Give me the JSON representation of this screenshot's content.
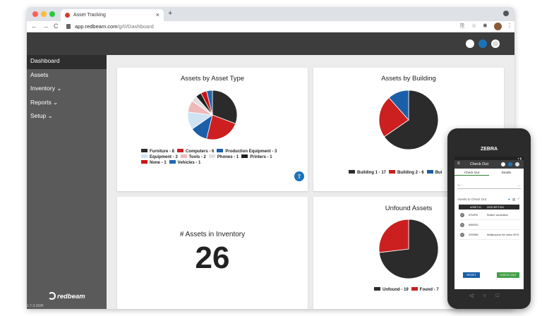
{
  "browser": {
    "tab_title": "Asset Tracking",
    "tab_close": "×",
    "new_tab": "+",
    "url_host": "app.redbeam.com",
    "url_path": "/g/0/Dashboard",
    "back": "←",
    "forward": "→",
    "reload": "C",
    "traffic_colors": [
      "#ff5f57",
      "#febc2e",
      "#28c840"
    ]
  },
  "sidebar": {
    "items": [
      {
        "label": "Dashboard"
      },
      {
        "label": "Assets"
      },
      {
        "label": "Inventory ⌄"
      },
      {
        "label": "Reports ⌄"
      },
      {
        "label": "Setup ⌄"
      }
    ],
    "logo_text": "redbeam",
    "version": "1.7.3.169F"
  },
  "colors": {
    "accent": "#1a73b8",
    "header": "#3d3d3d",
    "sidebar": "#5a5a5a",
    "chart_dark": "#2b2b2b",
    "chart_red": "#cc1f1f",
    "chart_blue": "#1a5fa8"
  },
  "cards": {
    "asset_type_title": "Assets by Asset Type",
    "building_title": "Assets by Building",
    "inventory_label": "# Assets in Inventory",
    "inventory_count": "26",
    "unfound_title": "Unfound Assets"
  },
  "chart_data": [
    {
      "type": "pie",
      "title": "Assets by Asset Type",
      "categories": [
        "Furniture",
        "Computers",
        "Production Equipment",
        "Equipment",
        "Tools",
        "Phones",
        "Printers",
        "None",
        "Vehicles"
      ],
      "values": [
        8,
        6,
        3,
        3,
        2,
        1,
        1,
        1,
        1
      ],
      "colors": [
        "#2b2b2b",
        "#cc1f1f",
        "#1a5fa8",
        "#cfe3f5",
        "#f0b8b8",
        "#e0e0e0",
        "#202020",
        "#c81414",
        "#1e66b0"
      ],
      "legend_labels": [
        "Furniture - 8",
        "Computers - 6",
        "Production Equipment - 3",
        "Equipment - 3",
        "Tools - 2",
        "Phones - 1",
        "Printers - 1",
        "None - 1",
        "Vehicles - 1"
      ],
      "legend_position": "bottom"
    },
    {
      "type": "pie",
      "title": "Assets by Building",
      "categories": [
        "Building 1",
        "Building 2",
        "Building 3"
      ],
      "values": [
        17,
        6,
        3
      ],
      "colors": [
        "#2b2b2b",
        "#cc1f1f",
        "#1a5fa8"
      ],
      "legend_labels": [
        "Building 1 - 17",
        "Building 2 - 6",
        "Bui"
      ],
      "legend_position": "bottom"
    },
    {
      "type": "pie",
      "title": "Unfound Assets",
      "categories": [
        "Unfound",
        "Found"
      ],
      "values": [
        19,
        7
      ],
      "colors": [
        "#2b2b2b",
        "#cc1f1f"
      ],
      "legend_labels": [
        "Unfound - 19",
        "Found - 7"
      ],
      "legend_position": "bottom"
    }
  ],
  "phone": {
    "brand": "ZEBRA",
    "header_title": "Check Out",
    "tabs": [
      "Check Out",
      "Details"
    ],
    "select_placeholder": "To *",
    "assets_label": "Assets to Check Out",
    "table_headers": [
      "ASSET ID",
      "DESCRIPTION"
    ],
    "rows": [
      {
        "id": "8764FM",
        "desc": "Rubber vaccination"
      },
      {
        "id": "6650001",
        "desc": ""
      },
      {
        "id": "3290984",
        "desc": "Multipurpose tire vector 8476"
      }
    ],
    "reset_label": "RESET",
    "checkout_label": "CHECK OUT"
  }
}
